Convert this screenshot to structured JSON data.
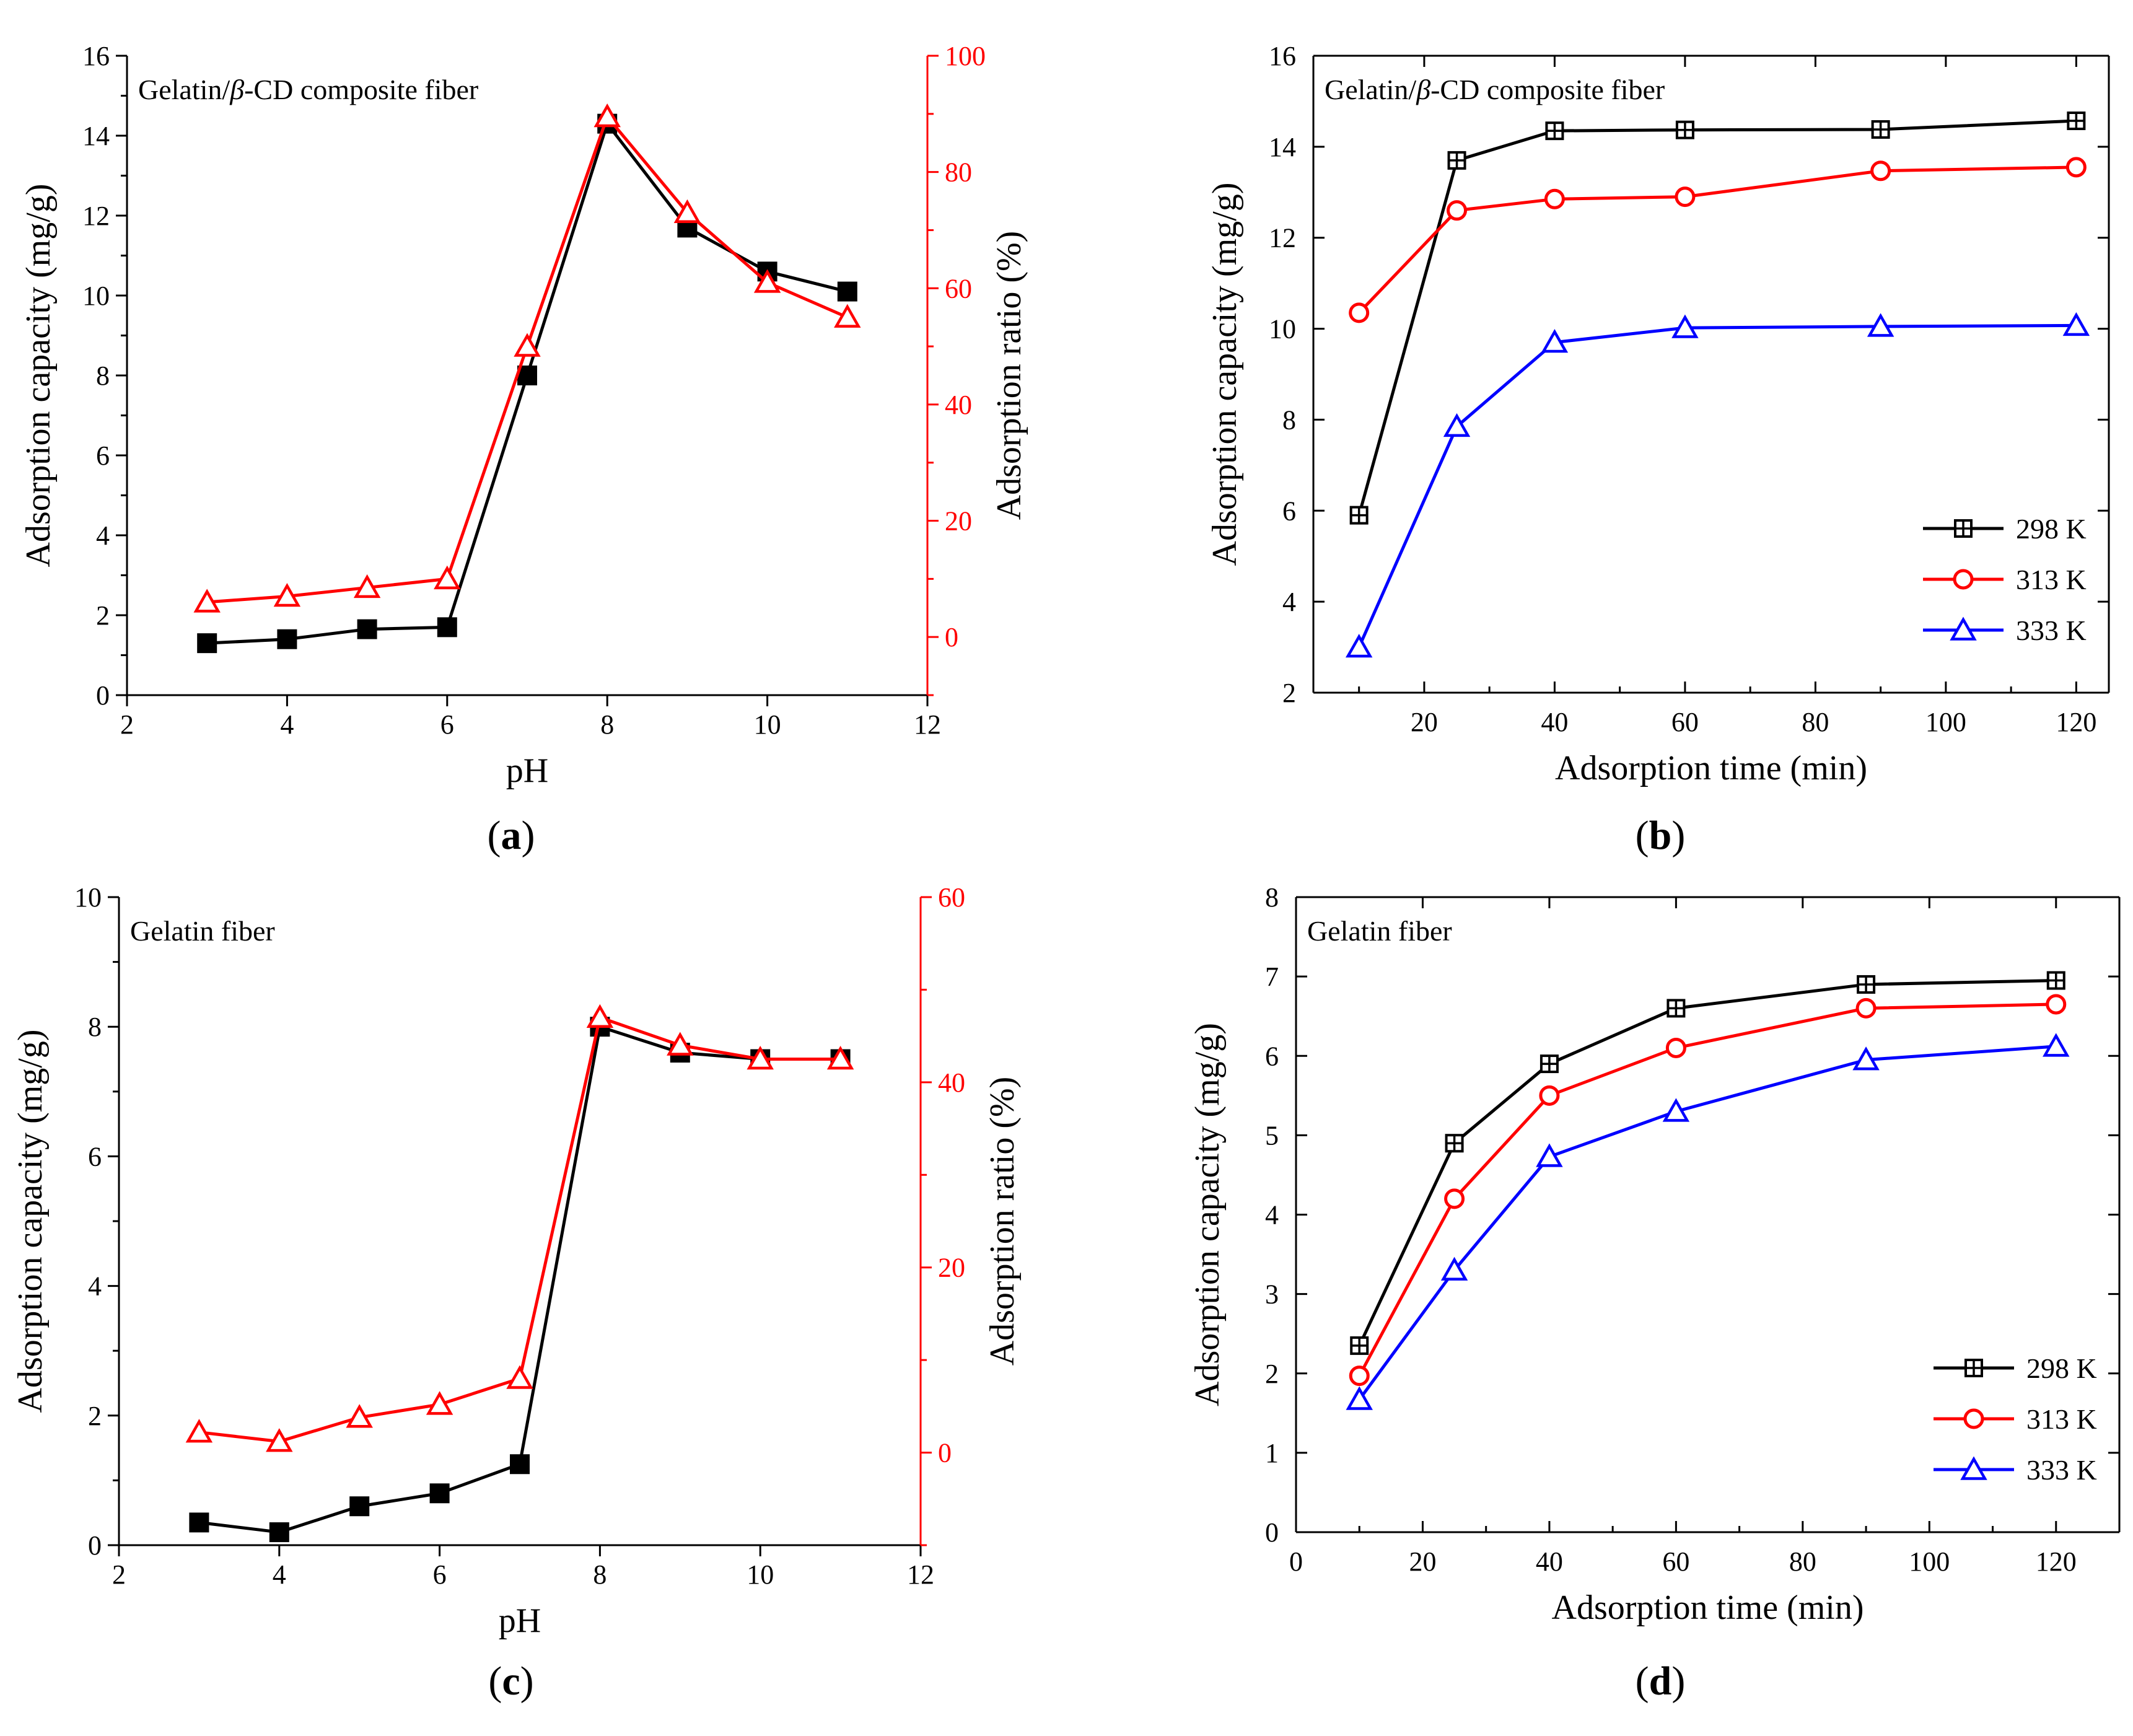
{
  "figure": {
    "panel_labels": [
      {
        "open": "(",
        "letter": "a",
        "close": ")"
      },
      {
        "open": "(",
        "letter": "b",
        "close": ")"
      },
      {
        "open": "(",
        "letter": "c",
        "close": ")"
      },
      {
        "open": "(",
        "letter": "d",
        "close": ")"
      }
    ]
  },
  "chart_data": [
    {
      "id": "a",
      "type": "line",
      "title_prefix": "Gelatin/",
      "title_italic": "β",
      "title_suffix": "-CD composite fiber",
      "xlabel": "pH",
      "ylabel": "Adsorption capacity (mg/g)",
      "y2label": "Adsorption ratio (%)",
      "xlim": [
        2,
        12
      ],
      "ylim": [
        0,
        16
      ],
      "y2lim": [
        -10,
        100
      ],
      "xticks": [
        2,
        4,
        6,
        8,
        10,
        12
      ],
      "yticks": [
        0,
        2,
        4,
        6,
        8,
        10,
        12,
        14,
        16
      ],
      "y2ticks": [
        0,
        20,
        40,
        60,
        80,
        100
      ],
      "x": [
        3,
        4,
        5,
        6,
        7,
        8,
        9,
        10,
        11
      ],
      "series": [
        {
          "name": "Adsorption capacity",
          "axis": "left",
          "marker": "filled-square",
          "color": "#000000",
          "values": [
            1.3,
            1.4,
            1.65,
            1.7,
            8.0,
            14.3,
            11.7,
            10.6,
            10.1
          ]
        },
        {
          "name": "Adsorption ratio",
          "axis": "right",
          "marker": "open-triangle",
          "color": "#ff0000",
          "values": [
            6,
            7,
            8.5,
            10,
            50,
            89.5,
            73,
            61,
            55
          ]
        }
      ]
    },
    {
      "id": "b",
      "type": "line",
      "title_prefix": "Gelatin/",
      "title_italic": "β",
      "title_suffix": "-CD composite fiber",
      "xlabel": "Adsorption time (min)",
      "ylabel": "Adsorption capacity (mg/g)",
      "xlim": [
        3,
        125
      ],
      "ylim": [
        2,
        16
      ],
      "xticks": [
        20,
        40,
        60,
        80,
        100,
        120
      ],
      "yticks": [
        2,
        4,
        6,
        8,
        10,
        12,
        14,
        16
      ],
      "x": [
        10,
        25,
        40,
        60,
        90,
        120
      ],
      "legend": "bottom-right",
      "series": [
        {
          "name": "298 K",
          "marker": "boxed-cross",
          "color": "#000000",
          "values": [
            5.9,
            13.7,
            14.35,
            14.37,
            14.38,
            14.57
          ]
        },
        {
          "name": "313 K",
          "marker": "open-circle",
          "color": "#ff0000",
          "values": [
            10.35,
            12.6,
            12.85,
            12.9,
            13.47,
            13.55
          ]
        },
        {
          "name": "333 K",
          "marker": "open-triangle",
          "color": "#0000ff",
          "values": [
            3.0,
            7.85,
            9.7,
            10.02,
            10.05,
            10.07
          ]
        }
      ]
    },
    {
      "id": "c",
      "type": "line",
      "title": "Gelatin fiber",
      "xlabel": "pH",
      "ylabel": "Adsorption capacity (mg/g)",
      "y2label": "Adsorption ratio (%)",
      "xlim": [
        2,
        12
      ],
      "ylim": [
        0,
        10
      ],
      "y2lim": [
        -10,
        60
      ],
      "xticks": [
        2,
        4,
        6,
        8,
        10,
        12
      ],
      "yticks": [
        0,
        2,
        4,
        6,
        8,
        10
      ],
      "y2ticks": [
        0,
        20,
        40,
        60
      ],
      "x": [
        3,
        4,
        5,
        6,
        7,
        8,
        9,
        10,
        11
      ],
      "series": [
        {
          "name": "Adsorption capacity",
          "axis": "left",
          "marker": "filled-square",
          "color": "#000000",
          "values": [
            0.35,
            0.2,
            0.6,
            0.8,
            1.25,
            8.0,
            7.6,
            7.5,
            7.5
          ]
        },
        {
          "name": "Adsorption ratio",
          "axis": "right",
          "marker": "open-triangle",
          "color": "#ff0000",
          "values": [
            2.2,
            1.2,
            3.8,
            5.2,
            8.0,
            47,
            44,
            42.5,
            42.5
          ]
        }
      ]
    },
    {
      "id": "d",
      "type": "line",
      "title": "Gelatin fiber",
      "xlabel": "Adsorption time (min)",
      "ylabel": "Adsorption capacity (mg/g)",
      "xlim": [
        0,
        130
      ],
      "ylim": [
        0,
        8
      ],
      "xticks": [
        0,
        20,
        40,
        60,
        80,
        100,
        120
      ],
      "yticks": [
        0,
        1,
        2,
        3,
        4,
        5,
        6,
        7,
        8
      ],
      "x": [
        10,
        25,
        40,
        60,
        90,
        120
      ],
      "legend": "bottom-right",
      "series": [
        {
          "name": "298 K",
          "marker": "boxed-cross",
          "color": "#000000",
          "values": [
            2.35,
            4.9,
            5.9,
            6.6,
            6.9,
            6.95
          ]
        },
        {
          "name": "313 K",
          "marker": "open-circle",
          "color": "#ff0000",
          "values": [
            1.97,
            4.2,
            5.5,
            6.1,
            6.6,
            6.65
          ]
        },
        {
          "name": "333 K",
          "marker": "open-triangle",
          "color": "#0000ff",
          "values": [
            1.67,
            3.3,
            4.73,
            5.3,
            5.95,
            6.12
          ]
        }
      ]
    }
  ]
}
